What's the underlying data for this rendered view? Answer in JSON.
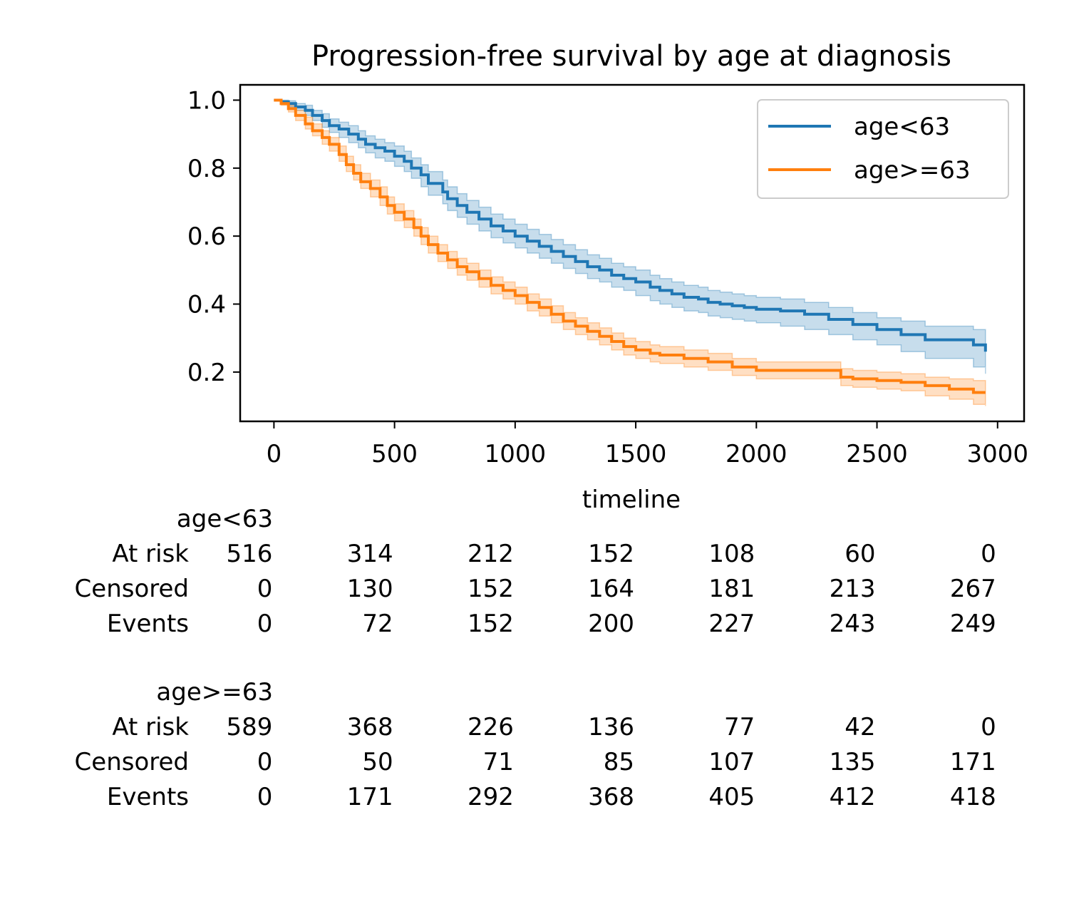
{
  "chart_data": {
    "type": "line",
    "title": "Progression-free survival by age at diagnosis",
    "xlabel": "timeline",
    "ylabel": "",
    "xlim": [
      -140,
      3110
    ],
    "ylim": [
      0.055,
      1.045
    ],
    "xticks": [
      0,
      500,
      1000,
      1500,
      2000,
      2500,
      3000
    ],
    "yticks": [
      0.2,
      0.4,
      0.6,
      0.8,
      1.0
    ],
    "xtick_labels": [
      "0",
      "500",
      "1000",
      "1500",
      "2000",
      "2500",
      "3000"
    ],
    "ytick_labels": [
      "0.2",
      "0.4",
      "0.6",
      "0.8",
      "1.0"
    ],
    "grid": false,
    "legend_position": "top-right",
    "series": [
      {
        "name": "age<63",
        "color": "#1f77b4",
        "x": [
          0,
          30,
          60,
          90,
          130,
          160,
          200,
          230,
          270,
          310,
          350,
          380,
          420,
          460,
          500,
          540,
          570,
          610,
          640,
          700,
          720,
          760,
          800,
          850,
          900,
          950,
          1000,
          1050,
          1100,
          1150,
          1200,
          1250,
          1300,
          1350,
          1400,
          1450,
          1500,
          1560,
          1600,
          1650,
          1700,
          1760,
          1800,
          1850,
          1900,
          1950,
          2000,
          2100,
          2200,
          2300,
          2400,
          2500,
          2600,
          2700,
          2900,
          2950
        ],
        "y": [
          1.0,
          0.995,
          0.99,
          0.98,
          0.97,
          0.955,
          0.94,
          0.925,
          0.915,
          0.9,
          0.885,
          0.87,
          0.86,
          0.85,
          0.835,
          0.82,
          0.8,
          0.78,
          0.755,
          0.73,
          0.71,
          0.69,
          0.67,
          0.65,
          0.63,
          0.615,
          0.6,
          0.585,
          0.57,
          0.555,
          0.54,
          0.525,
          0.51,
          0.5,
          0.485,
          0.475,
          0.465,
          0.45,
          0.44,
          0.43,
          0.42,
          0.415,
          0.405,
          0.4,
          0.395,
          0.39,
          0.385,
          0.38,
          0.37,
          0.355,
          0.34,
          0.325,
          0.31,
          0.295,
          0.28,
          0.26
        ],
        "ci_lower": [
          1.0,
          0.99,
          0.98,
          0.97,
          0.955,
          0.94,
          0.92,
          0.905,
          0.89,
          0.875,
          0.86,
          0.845,
          0.83,
          0.82,
          0.805,
          0.79,
          0.77,
          0.745,
          0.72,
          0.695,
          0.675,
          0.655,
          0.635,
          0.615,
          0.595,
          0.58,
          0.565,
          0.55,
          0.535,
          0.52,
          0.505,
          0.49,
          0.475,
          0.465,
          0.45,
          0.44,
          0.425,
          0.41,
          0.4,
          0.39,
          0.38,
          0.375,
          0.365,
          0.36,
          0.355,
          0.35,
          0.345,
          0.335,
          0.325,
          0.31,
          0.295,
          0.28,
          0.26,
          0.24,
          0.215,
          0.195
        ],
        "ci_upper": [
          1.0,
          1.0,
          0.998,
          0.99,
          0.985,
          0.97,
          0.96,
          0.945,
          0.935,
          0.925,
          0.91,
          0.895,
          0.885,
          0.875,
          0.865,
          0.85,
          0.83,
          0.81,
          0.79,
          0.765,
          0.745,
          0.725,
          0.705,
          0.685,
          0.665,
          0.65,
          0.635,
          0.62,
          0.605,
          0.59,
          0.575,
          0.56,
          0.545,
          0.535,
          0.52,
          0.51,
          0.5,
          0.485,
          0.475,
          0.465,
          0.455,
          0.45,
          0.44,
          0.435,
          0.43,
          0.425,
          0.42,
          0.415,
          0.405,
          0.39,
          0.375,
          0.36,
          0.35,
          0.335,
          0.325,
          0.32
        ]
      },
      {
        "name": "age>=63",
        "color": "#ff7f0e",
        "x": [
          0,
          30,
          60,
          90,
          130,
          160,
          200,
          230,
          270,
          300,
          330,
          360,
          400,
          440,
          470,
          500,
          540,
          580,
          610,
          640,
          680,
          720,
          760,
          800,
          850,
          900,
          950,
          1000,
          1050,
          1100,
          1150,
          1200,
          1250,
          1300,
          1350,
          1400,
          1450,
          1500,
          1560,
          1600,
          1700,
          1800,
          1900,
          2000,
          2100,
          2200,
          2300,
          2350,
          2400,
          2500,
          2600,
          2700,
          2800,
          2900,
          2950
        ],
        "y": [
          1.0,
          0.99,
          0.975,
          0.955,
          0.93,
          0.91,
          0.89,
          0.87,
          0.84,
          0.81,
          0.785,
          0.76,
          0.74,
          0.715,
          0.69,
          0.67,
          0.65,
          0.625,
          0.6,
          0.575,
          0.55,
          0.53,
          0.51,
          0.495,
          0.475,
          0.455,
          0.44,
          0.425,
          0.405,
          0.39,
          0.37,
          0.35,
          0.335,
          0.32,
          0.305,
          0.29,
          0.275,
          0.265,
          0.255,
          0.25,
          0.24,
          0.23,
          0.215,
          0.205,
          0.205,
          0.205,
          0.205,
          0.185,
          0.18,
          0.175,
          0.17,
          0.16,
          0.15,
          0.14,
          0.14
        ],
        "ci_lower": [
          1.0,
          0.985,
          0.965,
          0.94,
          0.915,
          0.895,
          0.87,
          0.85,
          0.82,
          0.79,
          0.765,
          0.74,
          0.715,
          0.69,
          0.665,
          0.645,
          0.625,
          0.6,
          0.575,
          0.55,
          0.525,
          0.505,
          0.485,
          0.47,
          0.45,
          0.43,
          0.415,
          0.4,
          0.38,
          0.365,
          0.345,
          0.325,
          0.31,
          0.295,
          0.28,
          0.265,
          0.25,
          0.24,
          0.23,
          0.225,
          0.215,
          0.205,
          0.19,
          0.18,
          0.18,
          0.18,
          0.18,
          0.16,
          0.155,
          0.15,
          0.145,
          0.13,
          0.12,
          0.105,
          0.1
        ],
        "ci_upper": [
          1.0,
          0.995,
          0.985,
          0.97,
          0.95,
          0.93,
          0.91,
          0.89,
          0.865,
          0.835,
          0.81,
          0.785,
          0.765,
          0.745,
          0.715,
          0.695,
          0.675,
          0.65,
          0.625,
          0.6,
          0.575,
          0.555,
          0.535,
          0.52,
          0.5,
          0.48,
          0.465,
          0.45,
          0.43,
          0.415,
          0.395,
          0.375,
          0.36,
          0.345,
          0.33,
          0.315,
          0.3,
          0.29,
          0.28,
          0.275,
          0.265,
          0.255,
          0.24,
          0.23,
          0.23,
          0.23,
          0.23,
          0.21,
          0.205,
          0.2,
          0.195,
          0.185,
          0.18,
          0.175,
          0.175
        ]
      }
    ]
  },
  "at_risk_table": {
    "times": [
      0,
      500,
      1000,
      1500,
      2000,
      2500,
      3000
    ],
    "groups": [
      {
        "name": "age<63",
        "rows": [
          {
            "label": "At risk",
            "values": [
              "516",
              "314",
              "212",
              "152",
              "108",
              "60",
              "0"
            ]
          },
          {
            "label": "Censored",
            "values": [
              "0",
              "130",
              "152",
              "164",
              "181",
              "213",
              "267"
            ]
          },
          {
            "label": "Events",
            "values": [
              "0",
              "72",
              "152",
              "200",
              "227",
              "243",
              "249"
            ]
          }
        ]
      },
      {
        "name": "age>=63",
        "rows": [
          {
            "label": "At risk",
            "values": [
              "589",
              "368",
              "226",
              "136",
              "77",
              "42",
              "0"
            ]
          },
          {
            "label": "Censored",
            "values": [
              "0",
              "50",
              "71",
              "85",
              "107",
              "135",
              "171"
            ]
          },
          {
            "label": "Events",
            "values": [
              "0",
              "171",
              "292",
              "368",
              "405",
              "412",
              "418"
            ]
          }
        ]
      }
    ]
  }
}
